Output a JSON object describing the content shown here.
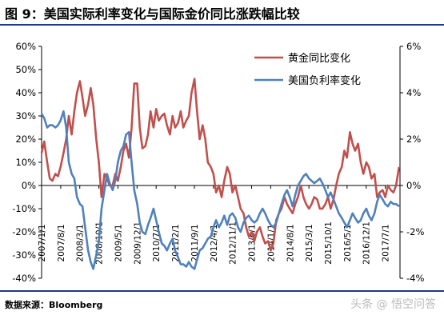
{
  "figure": {
    "title": "图 9：美国实际利率变化与国际金价同比涨跌幅比较",
    "source": "数据来源：Bloomberg",
    "watermark": "头条 @ 悟空问答"
  },
  "chart_data": {
    "type": "line",
    "title": "图 9：美国实际利率变化与国际金价同比涨跌幅比较",
    "x_tick_labels": [
      "2007/1/1",
      "2007/8/1",
      "2008/3/1",
      "2008/10/1",
      "2009/5/1",
      "2009/12/1",
      "2010/7/1",
      "2011/2/1",
      "2011/9/1",
      "2012/4/1",
      "2012/11/1",
      "2013/6/1",
      "2014/1/1",
      "2014/8/1",
      "2015/3/1",
      "2015/10/1",
      "2016/5/1",
      "2016/12/1",
      "2017/7/1"
    ],
    "x_range": [
      2007.0,
      2017.95
    ],
    "y_left": {
      "range": [
        -40,
        60
      ],
      "ticks": [
        60,
        50,
        40,
        30,
        20,
        10,
        0,
        -10,
        -20,
        -30,
        -40
      ],
      "unit": "%"
    },
    "y_right": {
      "range": [
        -4,
        6
      ],
      "ticks": [
        6,
        4,
        2,
        0,
        -2,
        -4
      ],
      "unit": "%"
    },
    "legend": {
      "position": "top-right"
    },
    "colors": {
      "gold": "#c0504d",
      "rate": "#4f81bd"
    },
    "series": [
      {
        "name": "黄金同比变化",
        "axis": "left",
        "color": "#c0504d",
        "points": [
          [
            2007.0,
            14
          ],
          [
            2007.08,
            19
          ],
          [
            2007.17,
            10
          ],
          [
            2007.25,
            3
          ],
          [
            2007.33,
            2
          ],
          [
            2007.42,
            5
          ],
          [
            2007.5,
            4
          ],
          [
            2007.58,
            8
          ],
          [
            2007.67,
            14
          ],
          [
            2007.75,
            20
          ],
          [
            2007.83,
            30
          ],
          [
            2007.92,
            22
          ],
          [
            2008.0,
            32
          ],
          [
            2008.08,
            40
          ],
          [
            2008.17,
            45
          ],
          [
            2008.25,
            38
          ],
          [
            2008.33,
            30
          ],
          [
            2008.42,
            35
          ],
          [
            2008.5,
            42
          ],
          [
            2008.58,
            35
          ],
          [
            2008.67,
            20
          ],
          [
            2008.75,
            10
          ],
          [
            2008.83,
            -5
          ],
          [
            2008.92,
            5
          ],
          [
            2009.0,
            3
          ],
          [
            2009.08,
            0
          ],
          [
            2009.17,
            0
          ],
          [
            2009.25,
            5
          ],
          [
            2009.33,
            2
          ],
          [
            2009.42,
            8
          ],
          [
            2009.5,
            15
          ],
          [
            2009.58,
            18
          ],
          [
            2009.67,
            12
          ],
          [
            2009.75,
            25
          ],
          [
            2009.83,
            44
          ],
          [
            2009.92,
            44
          ],
          [
            2010.0,
            25
          ],
          [
            2010.08,
            16
          ],
          [
            2010.17,
            17
          ],
          [
            2010.25,
            22
          ],
          [
            2010.33,
            32
          ],
          [
            2010.42,
            25
          ],
          [
            2010.5,
            33
          ],
          [
            2010.58,
            28
          ],
          [
            2010.67,
            30
          ],
          [
            2010.75,
            31
          ],
          [
            2010.83,
            26
          ],
          [
            2010.92,
            22
          ],
          [
            2011.0,
            30
          ],
          [
            2011.08,
            25
          ],
          [
            2011.17,
            27
          ],
          [
            2011.25,
            32
          ],
          [
            2011.33,
            25
          ],
          [
            2011.42,
            28
          ],
          [
            2011.5,
            30
          ],
          [
            2011.58,
            40
          ],
          [
            2011.67,
            46
          ],
          [
            2011.75,
            32
          ],
          [
            2011.83,
            20
          ],
          [
            2011.92,
            26
          ],
          [
            2012.0,
            20
          ],
          [
            2012.08,
            10
          ],
          [
            2012.17,
            8
          ],
          [
            2012.25,
            5
          ],
          [
            2012.33,
            -3
          ],
          [
            2012.42,
            0
          ],
          [
            2012.5,
            -5
          ],
          [
            2012.58,
            2
          ],
          [
            2012.67,
            8
          ],
          [
            2012.75,
            5
          ],
          [
            2012.83,
            -3
          ],
          [
            2012.92,
            0
          ],
          [
            2013.0,
            -5
          ],
          [
            2013.08,
            -10
          ],
          [
            2013.17,
            -12
          ],
          [
            2013.25,
            -18
          ],
          [
            2013.33,
            -22
          ],
          [
            2013.42,
            -20
          ],
          [
            2013.5,
            -24
          ],
          [
            2013.58,
            -20
          ],
          [
            2013.67,
            -18
          ],
          [
            2013.75,
            -22
          ],
          [
            2013.83,
            -25
          ],
          [
            2013.92,
            -24
          ],
          [
            2014.0,
            -28
          ],
          [
            2014.08,
            -25
          ],
          [
            2014.17,
            -15
          ],
          [
            2014.25,
            -12
          ],
          [
            2014.33,
            -10
          ],
          [
            2014.42,
            -5
          ],
          [
            2014.5,
            -8
          ],
          [
            2014.58,
            -10
          ],
          [
            2014.67,
            -12
          ],
          [
            2014.75,
            -8
          ],
          [
            2014.83,
            -5
          ],
          [
            2014.92,
            0
          ],
          [
            2015.0,
            -5
          ],
          [
            2015.08,
            -8
          ],
          [
            2015.17,
            -10
          ],
          [
            2015.25,
            -8
          ],
          [
            2015.33,
            -5
          ],
          [
            2015.42,
            -6
          ],
          [
            2015.5,
            -10
          ],
          [
            2015.58,
            -10
          ],
          [
            2015.67,
            -8
          ],
          [
            2015.75,
            -5
          ],
          [
            2015.83,
            -10
          ],
          [
            2015.92,
            -6
          ],
          [
            2016.0,
            0
          ],
          [
            2016.08,
            5
          ],
          [
            2016.17,
            8
          ],
          [
            2016.25,
            15
          ],
          [
            2016.33,
            12
          ],
          [
            2016.42,
            23
          ],
          [
            2016.5,
            18
          ],
          [
            2016.58,
            15
          ],
          [
            2016.67,
            18
          ],
          [
            2016.75,
            10
          ],
          [
            2016.83,
            5
          ],
          [
            2016.92,
            10
          ],
          [
            2017.0,
            8
          ],
          [
            2017.08,
            3
          ],
          [
            2017.17,
            5
          ],
          [
            2017.25,
            -5
          ],
          [
            2017.33,
            -3
          ],
          [
            2017.42,
            -2
          ],
          [
            2017.5,
            -5
          ],
          [
            2017.58,
            0
          ],
          [
            2017.67,
            -2
          ],
          [
            2017.75,
            -3
          ],
          [
            2017.83,
            0
          ],
          [
            2017.92,
            8
          ]
        ]
      },
      {
        "name": "美国负利率变化",
        "axis": "right",
        "color": "#4f81bd",
        "points": [
          [
            2007.0,
            3.1
          ],
          [
            2007.08,
            2.9
          ],
          [
            2007.17,
            2.5
          ],
          [
            2007.25,
            2.6
          ],
          [
            2007.33,
            2.6
          ],
          [
            2007.42,
            2.5
          ],
          [
            2007.5,
            2.6
          ],
          [
            2007.58,
            2.8
          ],
          [
            2007.67,
            3.2
          ],
          [
            2007.75,
            2.5
          ],
          [
            2007.83,
            1.0
          ],
          [
            2007.92,
            0.5
          ],
          [
            2008.0,
            0.3
          ],
          [
            2008.08,
            -0.5
          ],
          [
            2008.17,
            -0.8
          ],
          [
            2008.25,
            -0.9
          ],
          [
            2008.33,
            -1.8
          ],
          [
            2008.42,
            -2.8
          ],
          [
            2008.5,
            -3.3
          ],
          [
            2008.58,
            -3.6
          ],
          [
            2008.67,
            -3.0
          ],
          [
            2008.75,
            -2.4
          ],
          [
            2008.83,
            -1.0
          ],
          [
            2008.92,
            -0.2
          ],
          [
            2009.0,
            0.5
          ],
          [
            2009.08,
            0.1
          ],
          [
            2009.17,
            -0.2
          ],
          [
            2009.25,
            0.2
          ],
          [
            2009.33,
            1.0
          ],
          [
            2009.42,
            1.5
          ],
          [
            2009.5,
            1.7
          ],
          [
            2009.58,
            2.2
          ],
          [
            2009.67,
            2.3
          ],
          [
            2009.75,
            1.0
          ],
          [
            2009.83,
            -0.2
          ],
          [
            2009.92,
            -0.8
          ],
          [
            2010.0,
            -1.6
          ],
          [
            2010.08,
            -2.0
          ],
          [
            2010.17,
            -2.1
          ],
          [
            2010.25,
            -1.7
          ],
          [
            2010.33,
            -1.4
          ],
          [
            2010.42,
            -1.0
          ],
          [
            2010.5,
            -1.5
          ],
          [
            2010.58,
            -2.0
          ],
          [
            2010.67,
            -2.5
          ],
          [
            2010.75,
            -2.6
          ],
          [
            2010.83,
            -2.8
          ],
          [
            2010.92,
            -2.5
          ],
          [
            2011.0,
            -2.3
          ],
          [
            2011.08,
            -2.8
          ],
          [
            2011.17,
            -3.1
          ],
          [
            2011.25,
            -3.4
          ],
          [
            2011.33,
            -3.4
          ],
          [
            2011.42,
            -3.5
          ],
          [
            2011.5,
            -3.3
          ],
          [
            2011.58,
            -3.5
          ],
          [
            2011.67,
            -3.6
          ],
          [
            2011.75,
            -3.2
          ],
          [
            2011.83,
            -2.8
          ],
          [
            2011.92,
            -2.7
          ],
          [
            2012.0,
            -2.5
          ],
          [
            2012.08,
            -2.3
          ],
          [
            2012.17,
            -2.2
          ],
          [
            2012.25,
            -1.8
          ],
          [
            2012.33,
            -1.5
          ],
          [
            2012.42,
            -1.8
          ],
          [
            2012.5,
            -1.6
          ],
          [
            2012.58,
            -1.3
          ],
          [
            2012.67,
            -1.7
          ],
          [
            2012.75,
            -1.3
          ],
          [
            2012.83,
            -1.2
          ],
          [
            2012.92,
            -1.4
          ],
          [
            2013.0,
            -1.8
          ],
          [
            2013.08,
            -2.0
          ],
          [
            2013.17,
            -1.6
          ],
          [
            2013.25,
            -1.4
          ],
          [
            2013.33,
            -1.3
          ],
          [
            2013.42,
            -1.5
          ],
          [
            2013.5,
            -1.6
          ],
          [
            2013.58,
            -1.5
          ],
          [
            2013.67,
            -1.2
          ],
          [
            2013.75,
            -1.0
          ],
          [
            2013.83,
            -1.2
          ],
          [
            2013.92,
            -1.5
          ],
          [
            2014.0,
            -1.7
          ],
          [
            2014.08,
            -1.8
          ],
          [
            2014.17,
            -1.6
          ],
          [
            2014.25,
            -1.2
          ],
          [
            2014.33,
            -0.8
          ],
          [
            2014.42,
            -0.4
          ],
          [
            2014.5,
            -0.2
          ],
          [
            2014.58,
            -0.5
          ],
          [
            2014.67,
            -0.9
          ],
          [
            2014.75,
            -0.4
          ],
          [
            2014.83,
            0.0
          ],
          [
            2014.92,
            0.2
          ],
          [
            2015.0,
            0.4
          ],
          [
            2015.08,
            0.5
          ],
          [
            2015.17,
            0.3
          ],
          [
            2015.25,
            0.2
          ],
          [
            2015.33,
            0.1
          ],
          [
            2015.42,
            0.2
          ],
          [
            2015.5,
            0.3
          ],
          [
            2015.58,
            0.1
          ],
          [
            2015.67,
            -0.2
          ],
          [
            2015.75,
            -0.5
          ],
          [
            2015.83,
            -0.3
          ],
          [
            2015.92,
            -0.6
          ],
          [
            2016.0,
            -0.9
          ],
          [
            2016.08,
            -1.2
          ],
          [
            2016.17,
            -1.4
          ],
          [
            2016.25,
            -1.6
          ],
          [
            2016.33,
            -1.8
          ],
          [
            2016.42,
            -1.5
          ],
          [
            2016.5,
            -1.2
          ],
          [
            2016.58,
            -1.4
          ],
          [
            2016.67,
            -1.6
          ],
          [
            2016.75,
            -1.5
          ],
          [
            2016.83,
            -1.2
          ],
          [
            2016.92,
            -1.0
          ],
          [
            2017.0,
            -1.3
          ],
          [
            2017.08,
            -1.5
          ],
          [
            2017.17,
            -1.2
          ],
          [
            2017.25,
            -0.7
          ],
          [
            2017.33,
            -0.4
          ],
          [
            2017.42,
            -0.6
          ],
          [
            2017.5,
            -0.8
          ],
          [
            2017.58,
            -0.9
          ],
          [
            2017.67,
            -0.7
          ],
          [
            2017.75,
            -0.8
          ],
          [
            2017.83,
            -0.8
          ],
          [
            2017.92,
            -0.9
          ]
        ]
      }
    ]
  }
}
